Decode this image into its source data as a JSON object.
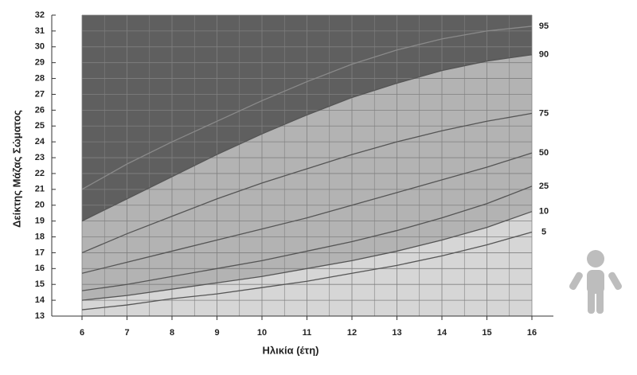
{
  "chart_data": {
    "type": "line",
    "x_label": "Ηλικία (έτη)",
    "y_label": "Δείκτης Μάζας Σώματος",
    "x": [
      6,
      7,
      8,
      9,
      10,
      11,
      12,
      13,
      14,
      15,
      16
    ],
    "xlim": [
      6,
      16
    ],
    "xticks": [
      6,
      7,
      8,
      9,
      10,
      11,
      12,
      13,
      14,
      15,
      16
    ],
    "ylim": [
      13,
      32
    ],
    "yticks": [
      13,
      14,
      15,
      16,
      17,
      18,
      19,
      20,
      21,
      22,
      23,
      24,
      25,
      26,
      27,
      28,
      29,
      30,
      31,
      32
    ],
    "grid": true,
    "background": "#d6d6d6",
    "series": [
      {
        "name": "5",
        "color": "#555555",
        "area": "#d6d6d6",
        "values": [
          13.4,
          13.7,
          14.1,
          14.4,
          14.8,
          15.2,
          15.7,
          16.2,
          16.8,
          17.5,
          18.3
        ]
      },
      {
        "name": "10",
        "color": "#555555",
        "area": "#b3b3b3",
        "values": [
          14.0,
          14.3,
          14.7,
          15.1,
          15.5,
          16.0,
          16.5,
          17.1,
          17.8,
          18.6,
          19.6
        ]
      },
      {
        "name": "25",
        "color": "#555555",
        "area": "#b3b3b3",
        "values": [
          14.6,
          15.0,
          15.5,
          16.0,
          16.5,
          17.1,
          17.7,
          18.4,
          19.2,
          20.1,
          21.2
        ]
      },
      {
        "name": "50",
        "color": "#555555",
        "area": "#b3b3b3",
        "values": [
          15.7,
          16.4,
          17.1,
          17.8,
          18.5,
          19.2,
          20.0,
          20.8,
          21.6,
          22.4,
          23.3
        ]
      },
      {
        "name": "75",
        "color": "#555555",
        "area": "#b3b3b3",
        "values": [
          17.0,
          18.2,
          19.3,
          20.4,
          21.4,
          22.3,
          23.2,
          24.0,
          24.7,
          25.3,
          25.8
        ]
      },
      {
        "name": "90",
        "color": "#555555",
        "area": "#5f5f5f",
        "values": [
          19.0,
          20.4,
          21.8,
          23.2,
          24.5,
          25.7,
          26.8,
          27.7,
          28.5,
          29.1,
          29.5
        ]
      },
      {
        "name": "95",
        "color": "#8a8a8a",
        "area": "#5f5f5f",
        "values": [
          21.0,
          22.6,
          24.0,
          25.3,
          26.6,
          27.8,
          28.9,
          29.8,
          30.5,
          31.0,
          31.3
        ]
      }
    ]
  }
}
